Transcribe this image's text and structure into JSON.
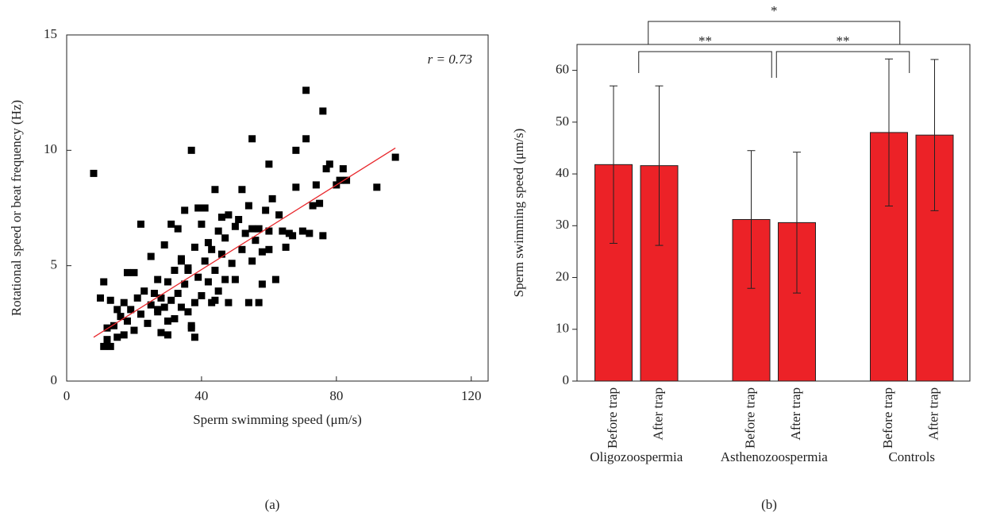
{
  "chart_data": [
    {
      "type": "scatter",
      "label": "(a)",
      "xlabel": "Sperm swimming speed (μm/s)",
      "ylabel": "Rotational speed or beat frequency (Hz)",
      "annotation": "r = 0.73",
      "xlim": [
        0,
        125
      ],
      "ylim": [
        0,
        15
      ],
      "xticks": [
        0,
        40,
        80,
        120
      ],
      "yticks": [
        0,
        5,
        10,
        15
      ],
      "color": "#000000",
      "fit_color": "#e8262b",
      "x": [
        8,
        10,
        11,
        11,
        12,
        12,
        13,
        13,
        14,
        15,
        15,
        16,
        17,
        17,
        18,
        18,
        19,
        20,
        20,
        21,
        22,
        22,
        23,
        24,
        25,
        25,
        26,
        27,
        27,
        28,
        28,
        29,
        29,
        30,
        30,
        31,
        31,
        32,
        32,
        33,
        33,
        34,
        34,
        35,
        35,
        36,
        36,
        37,
        37,
        38,
        38,
        39,
        39,
        40,
        40,
        41,
        41,
        42,
        42,
        43,
        43,
        44,
        44,
        45,
        45,
        46,
        46,
        47,
        47,
        48,
        48,
        49,
        50,
        50,
        51,
        52,
        52,
        53,
        54,
        54,
        55,
        55,
        56,
        57,
        57,
        58,
        58,
        59,
        60,
        60,
        61,
        62,
        63,
        64,
        65,
        66,
        67,
        68,
        68,
        70,
        71,
        71,
        72,
        73,
        74,
        75,
        76,
        76,
        77,
        78,
        80,
        81,
        82,
        83,
        92,
        97.5,
        37,
        38,
        44,
        36,
        34,
        30,
        27,
        55,
        60
      ],
      "y": [
        9.0,
        3.6,
        4.3,
        1.5,
        1.8,
        2.3,
        3.5,
        1.5,
        2.4,
        1.9,
        3.1,
        2.8,
        2.0,
        3.4,
        2.6,
        4.7,
        3.1,
        2.2,
        4.7,
        3.6,
        6.8,
        2.9,
        3.9,
        2.5,
        3.3,
        5.4,
        3.8,
        3.0,
        4.4,
        2.1,
        3.6,
        5.9,
        3.2,
        2.0,
        4.3,
        6.8,
        3.5,
        4.8,
        2.7,
        6.6,
        3.8,
        5.2,
        3.2,
        4.2,
        7.4,
        3.0,
        4.8,
        10.0,
        2.4,
        5.8,
        3.4,
        4.5,
        7.5,
        3.7,
        6.8,
        7.5,
        5.2,
        4.3,
        6.0,
        3.4,
        5.7,
        8.3,
        4.8,
        3.9,
        6.5,
        5.5,
        7.1,
        4.4,
        6.2,
        3.4,
        7.2,
        5.1,
        6.7,
        4.4,
        7.0,
        8.3,
        5.7,
        6.4,
        3.4,
        7.6,
        10.5,
        5.2,
        6.1,
        3.4,
        6.6,
        5.6,
        4.2,
        7.4,
        9.4,
        5.7,
        7.9,
        4.4,
        7.2,
        6.5,
        5.8,
        6.4,
        6.3,
        8.4,
        10.0,
        6.5,
        12.6,
        10.5,
        6.4,
        7.6,
        8.5,
        7.7,
        11.7,
        6.3,
        9.2,
        9.4,
        8.5,
        8.7,
        9.2,
        8.7,
        8.4,
        9.7,
        2.3,
        1.9,
        3.5,
        4.9,
        5.3,
        2.6,
        3.1,
        6.6,
        6.5
      ],
      "fit": {
        "x": [
          8,
          97.5
        ],
        "y": [
          1.9,
          10.1
        ]
      }
    },
    {
      "type": "bar",
      "label": "(b)",
      "ylabel": "Sperm swimming speed (μm/s)",
      "ylim": [
        0,
        65
      ],
      "yticks": [
        0,
        10,
        20,
        30,
        40,
        50,
        60
      ],
      "color": "#ec2227",
      "categories": [
        "Before trap",
        "After trap",
        "Before trap",
        "After trap",
        "Before trap",
        "After trap"
      ],
      "groups": [
        "Oligozoospermia",
        "Asthenozoospermia",
        "Controls"
      ],
      "values": [
        41.8,
        41.6,
        31.2,
        30.6,
        48.0,
        47.5
      ],
      "errors": [
        15.2,
        15.4,
        13.3,
        13.6,
        14.2,
        14.6
      ],
      "significance": [
        {
          "between": [
            0,
            1
          ],
          "label": "**"
        },
        {
          "between": [
            1,
            2
          ],
          "label": "**"
        },
        {
          "between": [
            0,
            2
          ],
          "label": "*"
        }
      ]
    }
  ]
}
